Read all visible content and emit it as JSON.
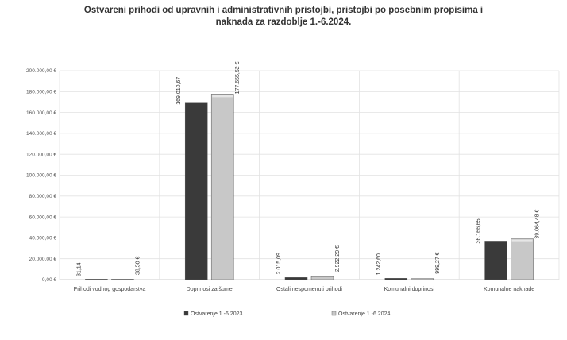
{
  "chart_data": {
    "type": "bar",
    "title_line1": "Ostvareni prihodi od upravnih i administrativnih pristojbi, pristojbi po posebnim propisima i",
    "title_line2": "naknada za razdoblje 1.-6.2024.",
    "categories": [
      "Prihodi vodnog gospodarstva",
      "Doprinosi za šume",
      "Ostali nespomenuti prihodi",
      "Komunalni doprinosi",
      "Komunalne naknade"
    ],
    "series": [
      {
        "name": "Ostvarenje 1.-6.2023.",
        "color": "#3a3a3a",
        "values": [
          31.14,
          169010.67,
          2015.09,
          1242.6,
          36166.65
        ],
        "labels": [
          "31,14",
          "169.010,67",
          "2.015,09",
          "1.242,60",
          "36.166,65"
        ]
      },
      {
        "name": "Ostvarenje 1.-6.2024.",
        "color": "#c8c8c8",
        "values": [
          38.5,
          177655.52,
          2922.29,
          999.27,
          39064.48
        ],
        "labels": [
          "38,50 €",
          "177.655,52 €",
          "2.922,29 €",
          "999,27 €",
          "39.064,48 €"
        ]
      }
    ],
    "ylim": [
      0,
      200000
    ],
    "yticks": [
      "0,00 €",
      "20.000,00 €",
      "40.000,00 €",
      "60.000,00 €",
      "80.000,00 €",
      "100.000,00 €",
      "120.000,00 €",
      "140.000,00 €",
      "160.000,00 €",
      "180.000,00 €",
      "200.000,00 €"
    ],
    "grid": true,
    "legend_position": "bottom"
  }
}
